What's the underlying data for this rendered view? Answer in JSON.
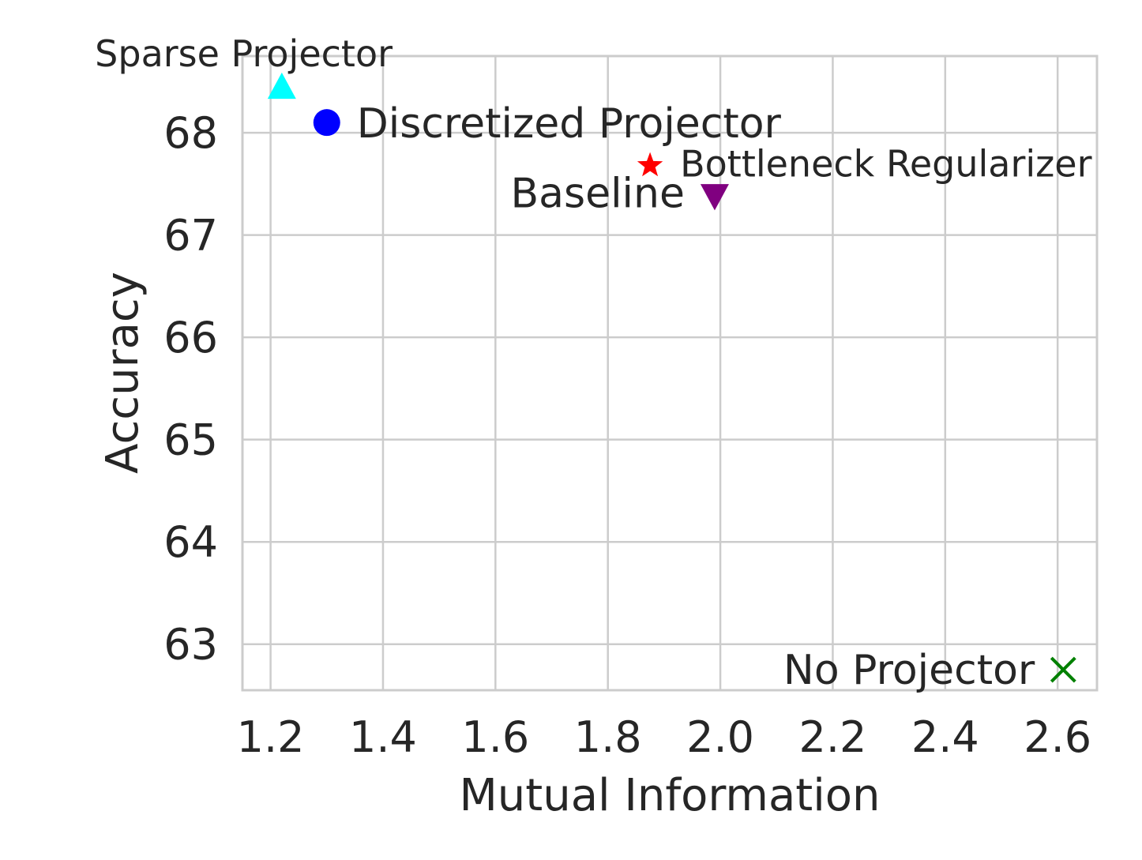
{
  "chart_data": {
    "type": "scatter",
    "xlabel": "Mutual Information",
    "ylabel": "Accuracy",
    "xlim": [
      1.15,
      2.67
    ],
    "ylim": [
      62.55,
      68.75
    ],
    "xticks": [
      1.2,
      1.4,
      1.6,
      1.8,
      2.0,
      2.2,
      2.4,
      2.6
    ],
    "xtick_labels": [
      "1.2",
      "1.4",
      "1.6",
      "1.8",
      "2.0",
      "2.2",
      "2.4",
      "2.6"
    ],
    "yticks": [
      63,
      64,
      65,
      66,
      67,
      68
    ],
    "ytick_labels": [
      "63",
      "64",
      "65",
      "66",
      "67",
      "68"
    ],
    "grid": true,
    "points": [
      {
        "name": "Sparse Projector",
        "x": 1.22,
        "y": 68.45,
        "marker": "triangle-up",
        "color": "#00ffff"
      },
      {
        "name": "Discretized Projector",
        "x": 1.3,
        "y": 68.1,
        "marker": "circle",
        "color": "#0000ff"
      },
      {
        "name": "Bottleneck Regularizer",
        "x": 1.875,
        "y": 67.68,
        "marker": "star",
        "color": "#ff0000"
      },
      {
        "name": "Baseline",
        "x": 1.99,
        "y": 67.38,
        "marker": "triangle-down",
        "color": "#800080"
      },
      {
        "name": "No Projector",
        "x": 2.61,
        "y": 62.75,
        "marker": "x",
        "color": "#008000"
      }
    ]
  }
}
